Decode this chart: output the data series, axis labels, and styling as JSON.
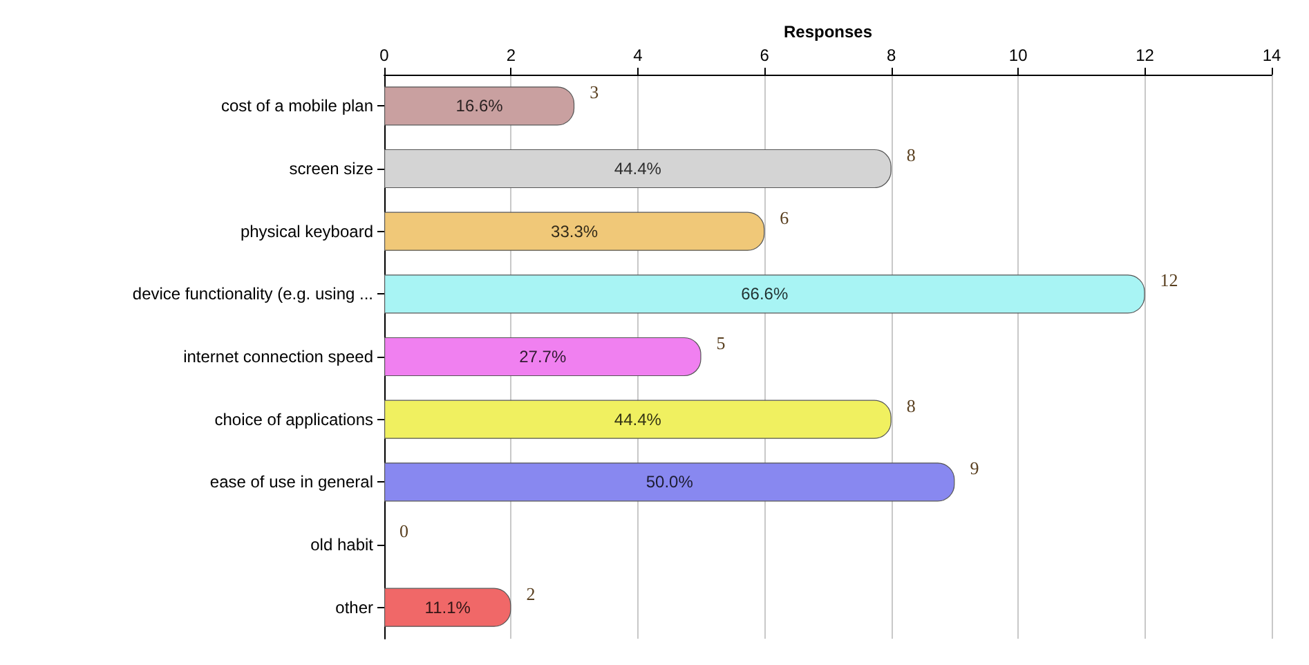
{
  "chart_data": {
    "type": "bar",
    "orientation": "horizontal",
    "xlabel": "Responses",
    "categories": [
      "cost of a mobile plan",
      "screen size",
      "physical keyboard",
      "device functionality (e.g. using ...",
      "internet connection speed",
      "choice of applications",
      "ease of use in general",
      "old habit",
      "other"
    ],
    "values": [
      3,
      8,
      6,
      12,
      5,
      8,
      9,
      0,
      2
    ],
    "colors": [
      "#c9a0a0",
      "#d4d4d4",
      "#f0c878",
      "#a8f4f4",
      "#f080f0",
      "#f0f060",
      "#8888f0",
      "#60f060",
      "#f06868"
    ],
    "annotations": [
      "16.6%",
      "44.4%",
      "33.3%",
      "66.6%",
      "27.7%",
      "44.4%",
      "50.0%",
      "11.1%"
    ],
    "data_labels": true,
    "xlim": [
      0,
      14
    ],
    "xticks": [
      0,
      2,
      4,
      6,
      8,
      10,
      12,
      14
    ],
    "grid": "x"
  }
}
